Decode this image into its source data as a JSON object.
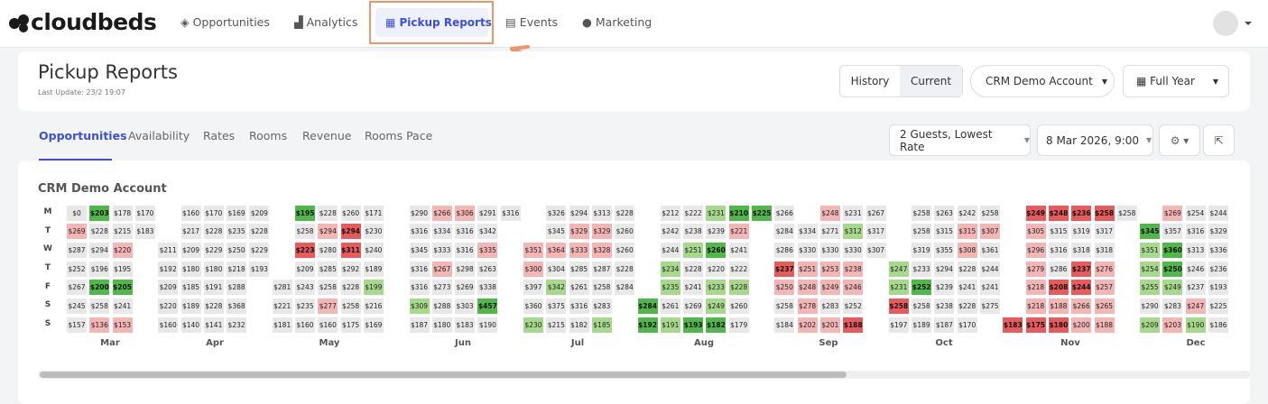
{
  "nav": {
    "logo": "cloudbeds",
    "items": [
      "Opportunities",
      "Analytics",
      "Pickup Reports",
      "Events",
      "Marketing"
    ]
  },
  "header": {
    "title": "Pickup Reports",
    "last_update": "Last Update: 23/2 19:07",
    "toggle": [
      "History",
      "Current"
    ],
    "account": "CRM Demo Account",
    "period": "Full Year"
  },
  "tabs": [
    "Opportunities",
    "Availability",
    "Rates",
    "Rooms",
    "Revenue",
    "Rooms Pace"
  ],
  "filters": {
    "guests": "2 Guests, Lowest Rate",
    "date": "8 Mar 2026, 9:00"
  },
  "calendar": {
    "title": "CRM Demo Account",
    "days": [
      "M",
      "T",
      "W",
      "T",
      "F",
      "S",
      "S"
    ],
    "months": [
      "Mar",
      "Apr",
      "May",
      "Jun",
      "Jul",
      "Aug",
      "Sep",
      "Oct",
      "Nov",
      "Dec"
    ],
    "palette": {
      "gray": "#e8e8e8",
      "green": "#4fb848",
      "lime": "#a6d98c",
      "pink": "#f4b5b5",
      "red": "#e85a5c"
    },
    "rows": [
      [
        "$0",
        {
          "text": "$203",
          "color": "green"
        },
        "$178",
        "$170",
        null,
        "$160",
        "$170",
        "$169",
        "$209",
        null,
        {
          "text": "$195",
          "color": "green"
        },
        "$228",
        "$260",
        "$171",
        null,
        "$290",
        {
          "text": "$266",
          "color": "pink"
        },
        {
          "text": "$306",
          "color": "pink"
        },
        "$291",
        "$316",
        null,
        "$326",
        "$294",
        "$313",
        "$228",
        null,
        "$212",
        "$222",
        {
          "text": "$231",
          "color": "lime"
        },
        {
          "text": "$210",
          "color": "green"
        },
        {
          "text": "$225",
          "color": "green"
        },
        "$266",
        null,
        {
          "text": "$248",
          "color": "pink"
        },
        "$231",
        "$267",
        null,
        "$258",
        "$263",
        "$242",
        "$258",
        null,
        {
          "text": "$249",
          "color": "red"
        },
        {
          "text": "$248",
          "color": "red"
        },
        {
          "text": "$236",
          "color": "red"
        },
        {
          "text": "$258",
          "color": "red"
        },
        "$258",
        null,
        {
          "text": "$269",
          "color": "pink"
        },
        "$254",
        "$244"
      ],
      [
        {
          "text": "$269",
          "color": "pink"
        },
        "$228",
        "$215",
        "$183",
        null,
        "$217",
        "$228",
        "$235",
        "$228",
        null,
        "$258",
        {
          "text": "$294",
          "color": "pink"
        },
        {
          "text": "$294",
          "color": "red"
        },
        "$230",
        null,
        "$316",
        "$334",
        "$316",
        "$342",
        null,
        null,
        "$345",
        {
          "text": "$329",
          "color": "pink"
        },
        {
          "text": "$329",
          "color": "pink"
        },
        "$260",
        null,
        "$242",
        "$238",
        "$239",
        {
          "text": "$221",
          "color": "pink"
        },
        null,
        "$284",
        "$334",
        "$271",
        {
          "text": "$312",
          "color": "lime"
        },
        "$317",
        null,
        "$258",
        "$315",
        {
          "text": "$315",
          "color": "pink"
        },
        {
          "text": "$307",
          "color": "pink"
        },
        null,
        {
          "text": "$305",
          "color": "pink"
        },
        "$315",
        "$319",
        "$317",
        null,
        {
          "text": "$345",
          "color": "green"
        },
        "$357",
        "$316",
        "$329"
      ],
      [
        "$287",
        "$294",
        {
          "text": "$220",
          "color": "pink"
        },
        null,
        "$211",
        "$209",
        "$229",
        "$250",
        "$229",
        null,
        {
          "text": "$223",
          "color": "red"
        },
        "$280",
        {
          "text": "$311",
          "color": "red"
        },
        "$240",
        null,
        "$345",
        "$333",
        "$316",
        {
          "text": "$335",
          "color": "pink"
        },
        null,
        {
          "text": "$351",
          "color": "pink"
        },
        {
          "text": "$364",
          "color": "pink"
        },
        {
          "text": "$333",
          "color": "pink"
        },
        {
          "text": "$328",
          "color": "pink"
        },
        "$260",
        null,
        "$244",
        {
          "text": "$251",
          "color": "lime"
        },
        {
          "text": "$260",
          "color": "green"
        },
        "$241",
        null,
        "$286",
        "$330",
        "$330",
        "$330",
        "$307",
        null,
        "$319",
        "$355",
        {
          "text": "$308",
          "color": "pink"
        },
        "$361",
        null,
        {
          "text": "$296",
          "color": "pink"
        },
        "$316",
        "$318",
        "$318",
        null,
        {
          "text": "$351",
          "color": "lime"
        },
        {
          "text": "$360",
          "color": "green"
        },
        "$313",
        "$336"
      ],
      [
        "$252",
        "$196",
        "$195",
        null,
        "$192",
        "$180",
        "$180",
        "$218",
        "$193",
        null,
        "$209",
        "$285",
        "$292",
        "$189",
        null,
        "$316",
        {
          "text": "$267",
          "color": "pink"
        },
        "$298",
        "$263",
        null,
        {
          "text": "$300",
          "color": "pink"
        },
        "$304",
        "$285",
        "$287",
        "$228",
        null,
        {
          "text": "$234",
          "color": "lime"
        },
        "$228",
        "$220",
        "$222",
        null,
        {
          "text": "$237",
          "color": "red"
        },
        {
          "text": "$251",
          "color": "pink"
        },
        {
          "text": "$253",
          "color": "pink"
        },
        {
          "text": "$238",
          "color": "pink"
        },
        null,
        {
          "text": "$247",
          "color": "lime"
        },
        "$233",
        "$294",
        "$228",
        "$244",
        null,
        {
          "text": "$279",
          "color": "pink"
        },
        "$286",
        {
          "text": "$237",
          "color": "red"
        },
        {
          "text": "$276",
          "color": "pink"
        },
        null,
        {
          "text": "$254",
          "color": "lime"
        },
        {
          "text": "$250",
          "color": "green"
        },
        "$246",
        "$236"
      ],
      [
        "$267",
        {
          "text": "$200",
          "color": "green"
        },
        {
          "text": "$205",
          "color": "green"
        },
        null,
        "$209",
        "$185",
        "$191",
        "$288",
        null,
        "$281",
        "$243",
        "$258",
        "$228",
        {
          "text": "$199",
          "color": "lime"
        },
        null,
        "$316",
        "$273",
        "$269",
        "$338",
        null,
        "$397",
        {
          "text": "$342",
          "color": "lime"
        },
        "$261",
        "$258",
        "$284",
        null,
        {
          "text": "$235",
          "color": "lime"
        },
        "$241",
        {
          "text": "$233",
          "color": "lime"
        },
        {
          "text": "$228",
          "color": "lime"
        },
        null,
        {
          "text": "$250",
          "color": "pink"
        },
        {
          "text": "$248",
          "color": "pink"
        },
        {
          "text": "$249",
          "color": "pink"
        },
        {
          "text": "$246",
          "color": "pink"
        },
        null,
        {
          "text": "$231",
          "color": "lime"
        },
        {
          "text": "$252",
          "color": "green"
        },
        "$239",
        "$241",
        "$241",
        null,
        {
          "text": "$218",
          "color": "pink"
        },
        {
          "text": "$208",
          "color": "red"
        },
        {
          "text": "$244",
          "color": "red"
        },
        {
          "text": "$257",
          "color": "pink"
        },
        null,
        {
          "text": "$255",
          "color": "lime"
        },
        {
          "text": "$249",
          "color": "lime"
        },
        "$237",
        "$193"
      ],
      [
        "$245",
        "$258",
        "$241",
        null,
        "$220",
        "$189",
        "$228",
        "$368",
        null,
        "$221",
        "$235",
        {
          "text": "$277",
          "color": "pink"
        },
        "$258",
        "$216",
        null,
        {
          "text": "$309",
          "color": "lime"
        },
        "$288",
        "$303",
        {
          "text": "$457",
          "color": "green"
        },
        null,
        "$360",
        "$375",
        "$316",
        "$283",
        null,
        {
          "text": "$284",
          "color": "green"
        },
        "$261",
        "$269",
        {
          "text": "$249",
          "color": "lime"
        },
        "$260",
        null,
        "$258",
        {
          "text": "$278",
          "color": "pink"
        },
        "$283",
        "$252",
        null,
        {
          "text": "$258",
          "color": "red"
        },
        "$258",
        "$238",
        "$228",
        "$275",
        null,
        {
          "text": "$218",
          "color": "pink"
        },
        {
          "text": "$188",
          "color": "pink"
        },
        {
          "text": "$266",
          "color": "pink"
        },
        {
          "text": "$265",
          "color": "pink"
        },
        null,
        "$290",
        "$283",
        {
          "text": "$247",
          "color": "pink"
        },
        "$225"
      ],
      [
        "$157",
        {
          "text": "$136",
          "color": "pink"
        },
        {
          "text": "$153",
          "color": "pink"
        },
        null,
        "$160",
        "$140",
        "$141",
        "$232",
        null,
        "$181",
        "$160",
        "$160",
        "$175",
        "$169",
        null,
        "$187",
        "$180",
        "$183",
        "$190",
        null,
        {
          "text": "$230",
          "color": "lime"
        },
        "$215",
        "$182",
        {
          "text": "$185",
          "color": "lime"
        },
        null,
        {
          "text": "$192",
          "color": "green"
        },
        {
          "text": "$191",
          "color": "lime"
        },
        {
          "text": "$193",
          "color": "green"
        },
        {
          "text": "$182",
          "color": "green"
        },
        "$179",
        null,
        "$184",
        {
          "text": "$202",
          "color": "pink"
        },
        {
          "text": "$201",
          "color": "pink"
        },
        {
          "text": "$188",
          "color": "red"
        },
        null,
        "$197",
        "$189",
        "$187",
        "$170",
        null,
        {
          "text": "$183",
          "color": "red"
        },
        {
          "text": "$175",
          "color": "red"
        },
        {
          "text": "$180",
          "color": "red"
        },
        {
          "text": "$200",
          "color": "pink"
        },
        {
          "text": "$188",
          "color": "pink"
        },
        null,
        {
          "text": "$209",
          "color": "lime"
        },
        {
          "text": "$203",
          "color": "pink"
        },
        {
          "text": "$190",
          "color": "lime"
        },
        "$186"
      ]
    ]
  }
}
